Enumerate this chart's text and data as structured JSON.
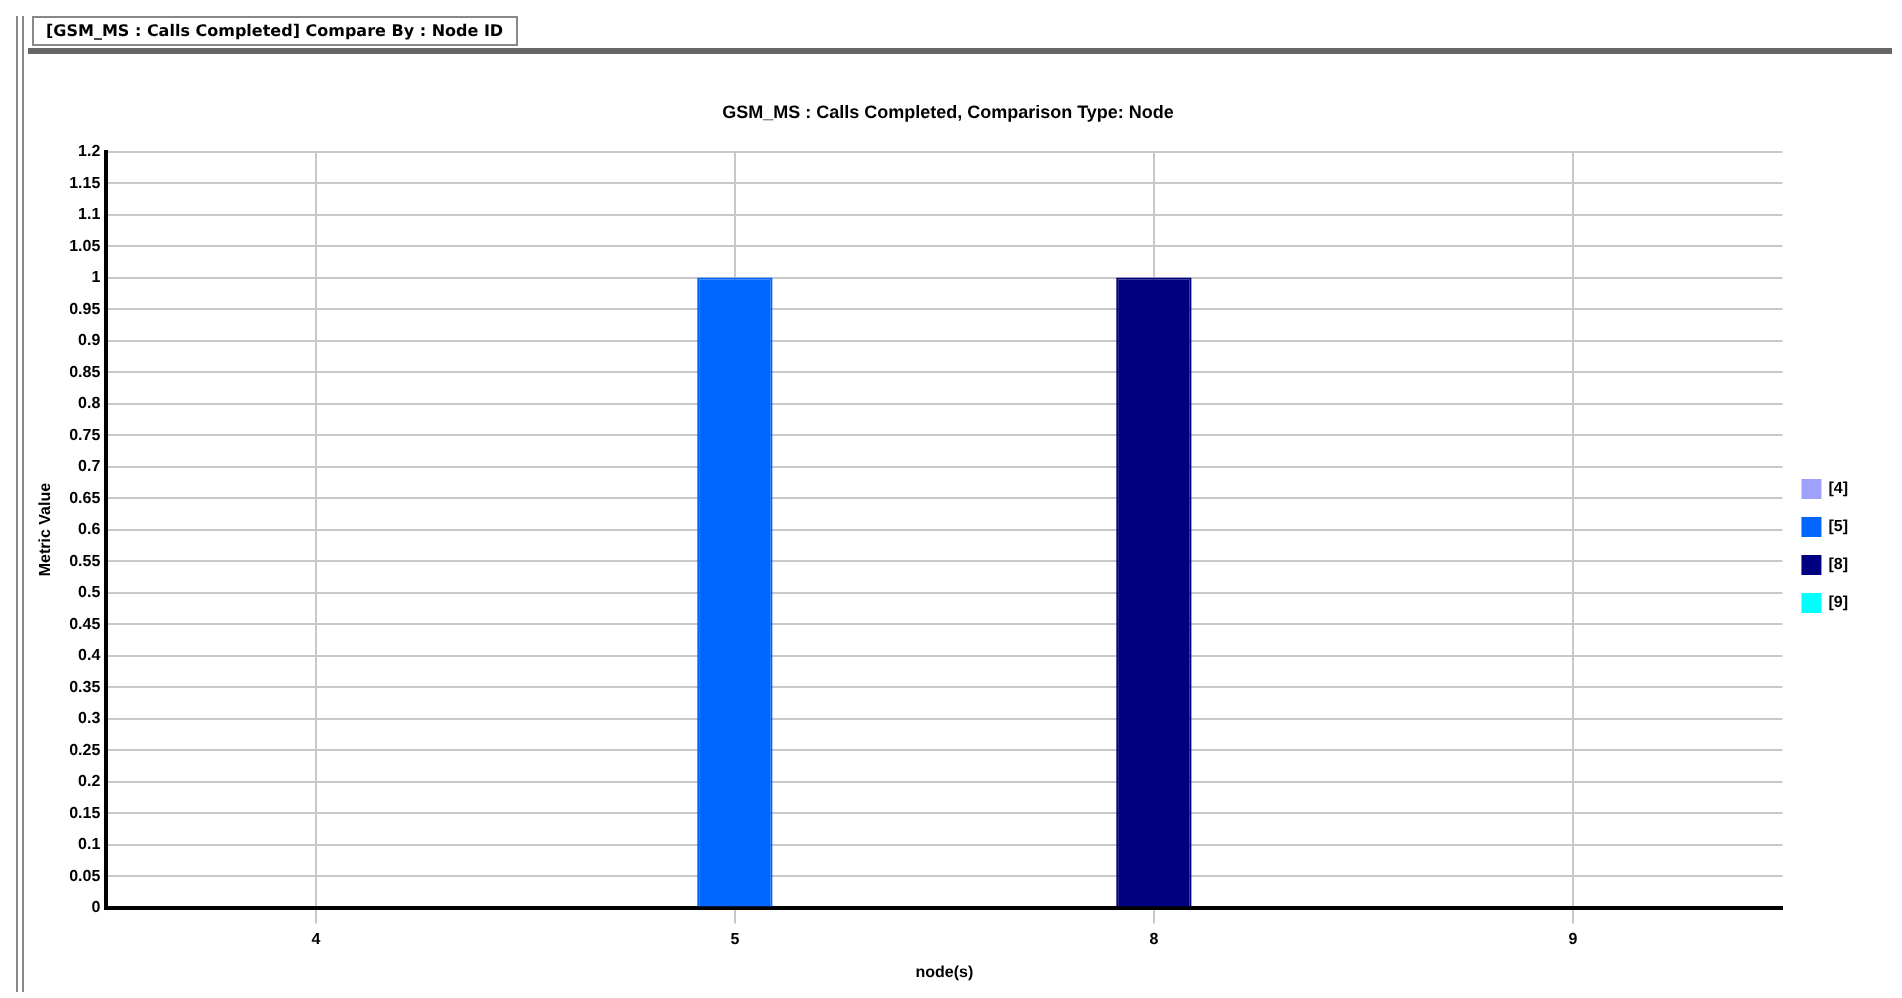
{
  "chart_data": {
    "type": "bar",
    "title": "GSM_MS : Calls Completed, Comparison Type: Node",
    "xlabel": "node(s)",
    "ylabel": "Metric Value",
    "annotations": [
      "[GSM_MS : Calls Completed] Compare By : Node ID"
    ],
    "categories": [
      "4",
      "5",
      "8",
      "9"
    ],
    "series": [
      {
        "name": "[4]",
        "color": "#a0a0ff",
        "values": [
          null,
          null,
          null,
          null
        ]
      },
      {
        "name": "[5]",
        "color": "#0066ff",
        "values": [
          null,
          1,
          null,
          null
        ]
      },
      {
        "name": "[8]",
        "color": "#000080",
        "values": [
          null,
          null,
          1,
          null
        ]
      },
      {
        "name": "[9]",
        "color": "#00ffff",
        "values": [
          null,
          null,
          null,
          null
        ]
      }
    ],
    "ylim": [
      0,
      1.2
    ],
    "yticks": [
      0,
      0.05,
      0.1,
      0.15,
      0.2,
      0.25,
      0.3,
      0.35,
      0.4,
      0.45,
      0.5,
      0.55,
      0.6,
      0.65,
      0.7,
      0.75,
      0.8,
      0.85,
      0.9,
      0.95,
      1,
      1.05,
      1.1,
      1.15,
      1.2
    ],
    "grid": true,
    "legend": "right"
  }
}
